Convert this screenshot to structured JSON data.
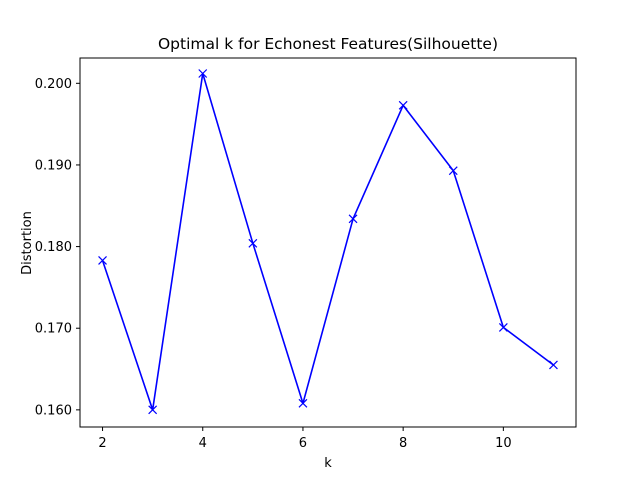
{
  "chart_data": {
    "type": "line",
    "title": "Optimal k for Echonest Features(Silhouette)",
    "xlabel": "k",
    "ylabel": "Distortion",
    "xlim": [
      1.55,
      11.45
    ],
    "ylim": [
      0.1579,
      0.2031
    ],
    "xticks": [
      2,
      4,
      6,
      8,
      10
    ],
    "yticks": [
      0.16,
      0.17,
      0.18,
      0.19,
      0.2
    ],
    "ytick_labels": [
      "0.160",
      "0.170",
      "0.180",
      "0.190",
      "0.200"
    ],
    "grid": false,
    "marker": "x",
    "line_color": "#0000ff",
    "series": [
      {
        "x": [
          2,
          3,
          4,
          5,
          6,
          7,
          8,
          9,
          10,
          11
        ],
        "values": [
          0.1783,
          0.16,
          0.2012,
          0.1804,
          0.1608,
          0.1834,
          0.1973,
          0.1893,
          0.1701,
          0.1655
        ]
      }
    ]
  }
}
